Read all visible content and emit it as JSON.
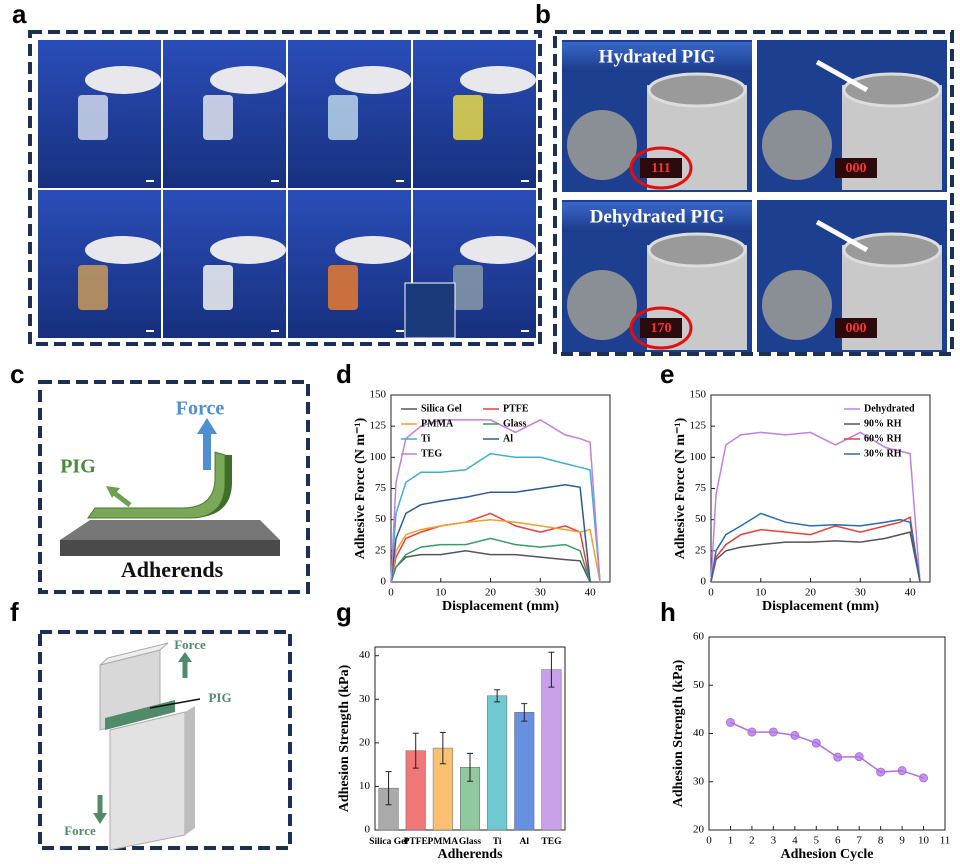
{
  "panel_labels": {
    "a": "a",
    "b": "b",
    "c": "c",
    "d": "d",
    "e": "e",
    "f": "f",
    "g": "g",
    "h": "h"
  },
  "photos_b": {
    "hydrated": "Hydrated PIG",
    "dehydrated": "Dehydrated PIG",
    "displays": [
      "111",
      "000",
      "170",
      "000"
    ]
  },
  "diagram_c": {
    "force": "Force",
    "pig": "PIG",
    "adherends": "Adherends"
  },
  "diagram_f": {
    "force_top": "Force",
    "pig": "PIG",
    "force_bottom": "Force"
  },
  "chart_data": [
    {
      "type": "line",
      "xlabel": "Displacement (mm)",
      "ylabel": "Adhesive Force (N m⁻¹)",
      "x": [
        0,
        1,
        3,
        6,
        10,
        15,
        20,
        25,
        30,
        35,
        38,
        40,
        42
      ],
      "series": [
        {
          "name": "Silica Gel",
          "color": "#555555",
          "values": [
            0,
            12,
            20,
            22,
            22,
            25,
            22,
            22,
            20,
            18,
            17,
            0,
            null
          ]
        },
        {
          "name": "PTFE",
          "color": "#e8403a",
          "values": [
            0,
            20,
            35,
            40,
            45,
            48,
            55,
            45,
            40,
            45,
            40,
            0,
            null
          ]
        },
        {
          "name": "PMMA",
          "color": "#f0a030",
          "values": [
            0,
            25,
            38,
            42,
            45,
            48,
            50,
            48,
            45,
            42,
            40,
            42,
            0
          ]
        },
        {
          "name": "Glass",
          "color": "#3a9a6a",
          "values": [
            0,
            12,
            22,
            28,
            30,
            30,
            35,
            30,
            28,
            30,
            25,
            0,
            null
          ]
        },
        {
          "name": "Ti",
          "color": "#3fb0c8",
          "values": [
            0,
            55,
            80,
            88,
            88,
            90,
            103,
            100,
            100,
            95,
            92,
            90,
            0
          ]
        },
        {
          "name": "Al",
          "color": "#2a5a9a",
          "values": [
            0,
            35,
            55,
            62,
            65,
            68,
            72,
            72,
            75,
            78,
            76,
            0,
            null
          ]
        },
        {
          "name": "TEG",
          "color": "#c080e0",
          "values": [
            0,
            80,
            115,
            125,
            130,
            130,
            130,
            120,
            130,
            118,
            115,
            112,
            0
          ]
        }
      ],
      "xlim": [
        0,
        44
      ],
      "ylim": [
        0,
        150
      ],
      "xticks": [
        0,
        10,
        20,
        30,
        40
      ],
      "yticks": [
        0,
        25,
        50,
        75,
        100,
        125,
        150
      ],
      "legend": "upper left",
      "legend_columns": 2
    },
    {
      "type": "line",
      "xlabel": "Displacement (mm)",
      "ylabel": "Adhesive Force (N m⁻¹)",
      "x": [
        0,
        1,
        3,
        6,
        10,
        15,
        20,
        25,
        30,
        35,
        38,
        40,
        42
      ],
      "series": [
        {
          "name": "Dehydrated",
          "color": "#c080e0",
          "values": [
            0,
            70,
            110,
            118,
            120,
            118,
            120,
            110,
            120,
            108,
            105,
            103,
            0
          ]
        },
        {
          "name": "90% RH",
          "color": "#555555",
          "values": [
            0,
            18,
            25,
            28,
            30,
            32,
            32,
            33,
            32,
            35,
            38,
            40,
            0
          ]
        },
        {
          "name": "60% RH",
          "color": "#e8403a",
          "values": [
            0,
            20,
            30,
            38,
            42,
            40,
            38,
            45,
            40,
            45,
            48,
            52,
            0
          ]
        },
        {
          "name": "30% RH",
          "color": "#2a6ab0",
          "values": [
            0,
            25,
            38,
            45,
            55,
            48,
            45,
            46,
            45,
            48,
            50,
            48,
            0
          ]
        }
      ],
      "xlim": [
        0,
        44
      ],
      "ylim": [
        0,
        150
      ],
      "xticks": [
        0,
        10,
        20,
        30,
        40
      ],
      "yticks": [
        0,
        25,
        50,
        75,
        100,
        125,
        150
      ],
      "legend": "upper right",
      "legend_columns": 1
    },
    {
      "type": "bar",
      "xlabel": "Adherends",
      "ylabel": "Adhesion Strength (kPa)",
      "categories": [
        "Silica Gel",
        "PTFE",
        "PMMA",
        "Glass",
        "Ti",
        "Al",
        "TEG"
      ],
      "values": [
        9.6,
        18.2,
        18.8,
        14.4,
        30.8,
        27.0,
        36.8
      ],
      "errors": [
        3.8,
        4.0,
        3.6,
        3.2,
        1.4,
        2.0,
        4.0
      ],
      "colors": [
        "#aaaaaa",
        "#f07878",
        "#f8c070",
        "#90c8a0",
        "#70c8d0",
        "#6890e0",
        "#c8a0e8"
      ],
      "ylim": [
        0,
        42
      ],
      "yticks": [
        0,
        10,
        20,
        30,
        40
      ]
    },
    {
      "type": "line",
      "xlabel": "Adhesion Cycle",
      "ylabel": "Adhesion Strength (kPa)",
      "x": [
        1,
        2,
        3,
        4,
        5,
        6,
        7,
        8,
        9,
        10
      ],
      "series": [
        {
          "color": "#b070e0",
          "values": [
            42.3,
            40.3,
            40.3,
            39.6,
            38.0,
            35.1,
            35.2,
            32.0,
            32.3,
            30.8
          ]
        }
      ],
      "markers": true,
      "xlim": [
        0,
        11
      ],
      "ylim": [
        20,
        60
      ],
      "xticks": [
        0,
        1,
        2,
        3,
        4,
        5,
        6,
        7,
        8,
        9,
        10,
        11
      ],
      "yticks": [
        20,
        30,
        40,
        50,
        60
      ]
    }
  ]
}
